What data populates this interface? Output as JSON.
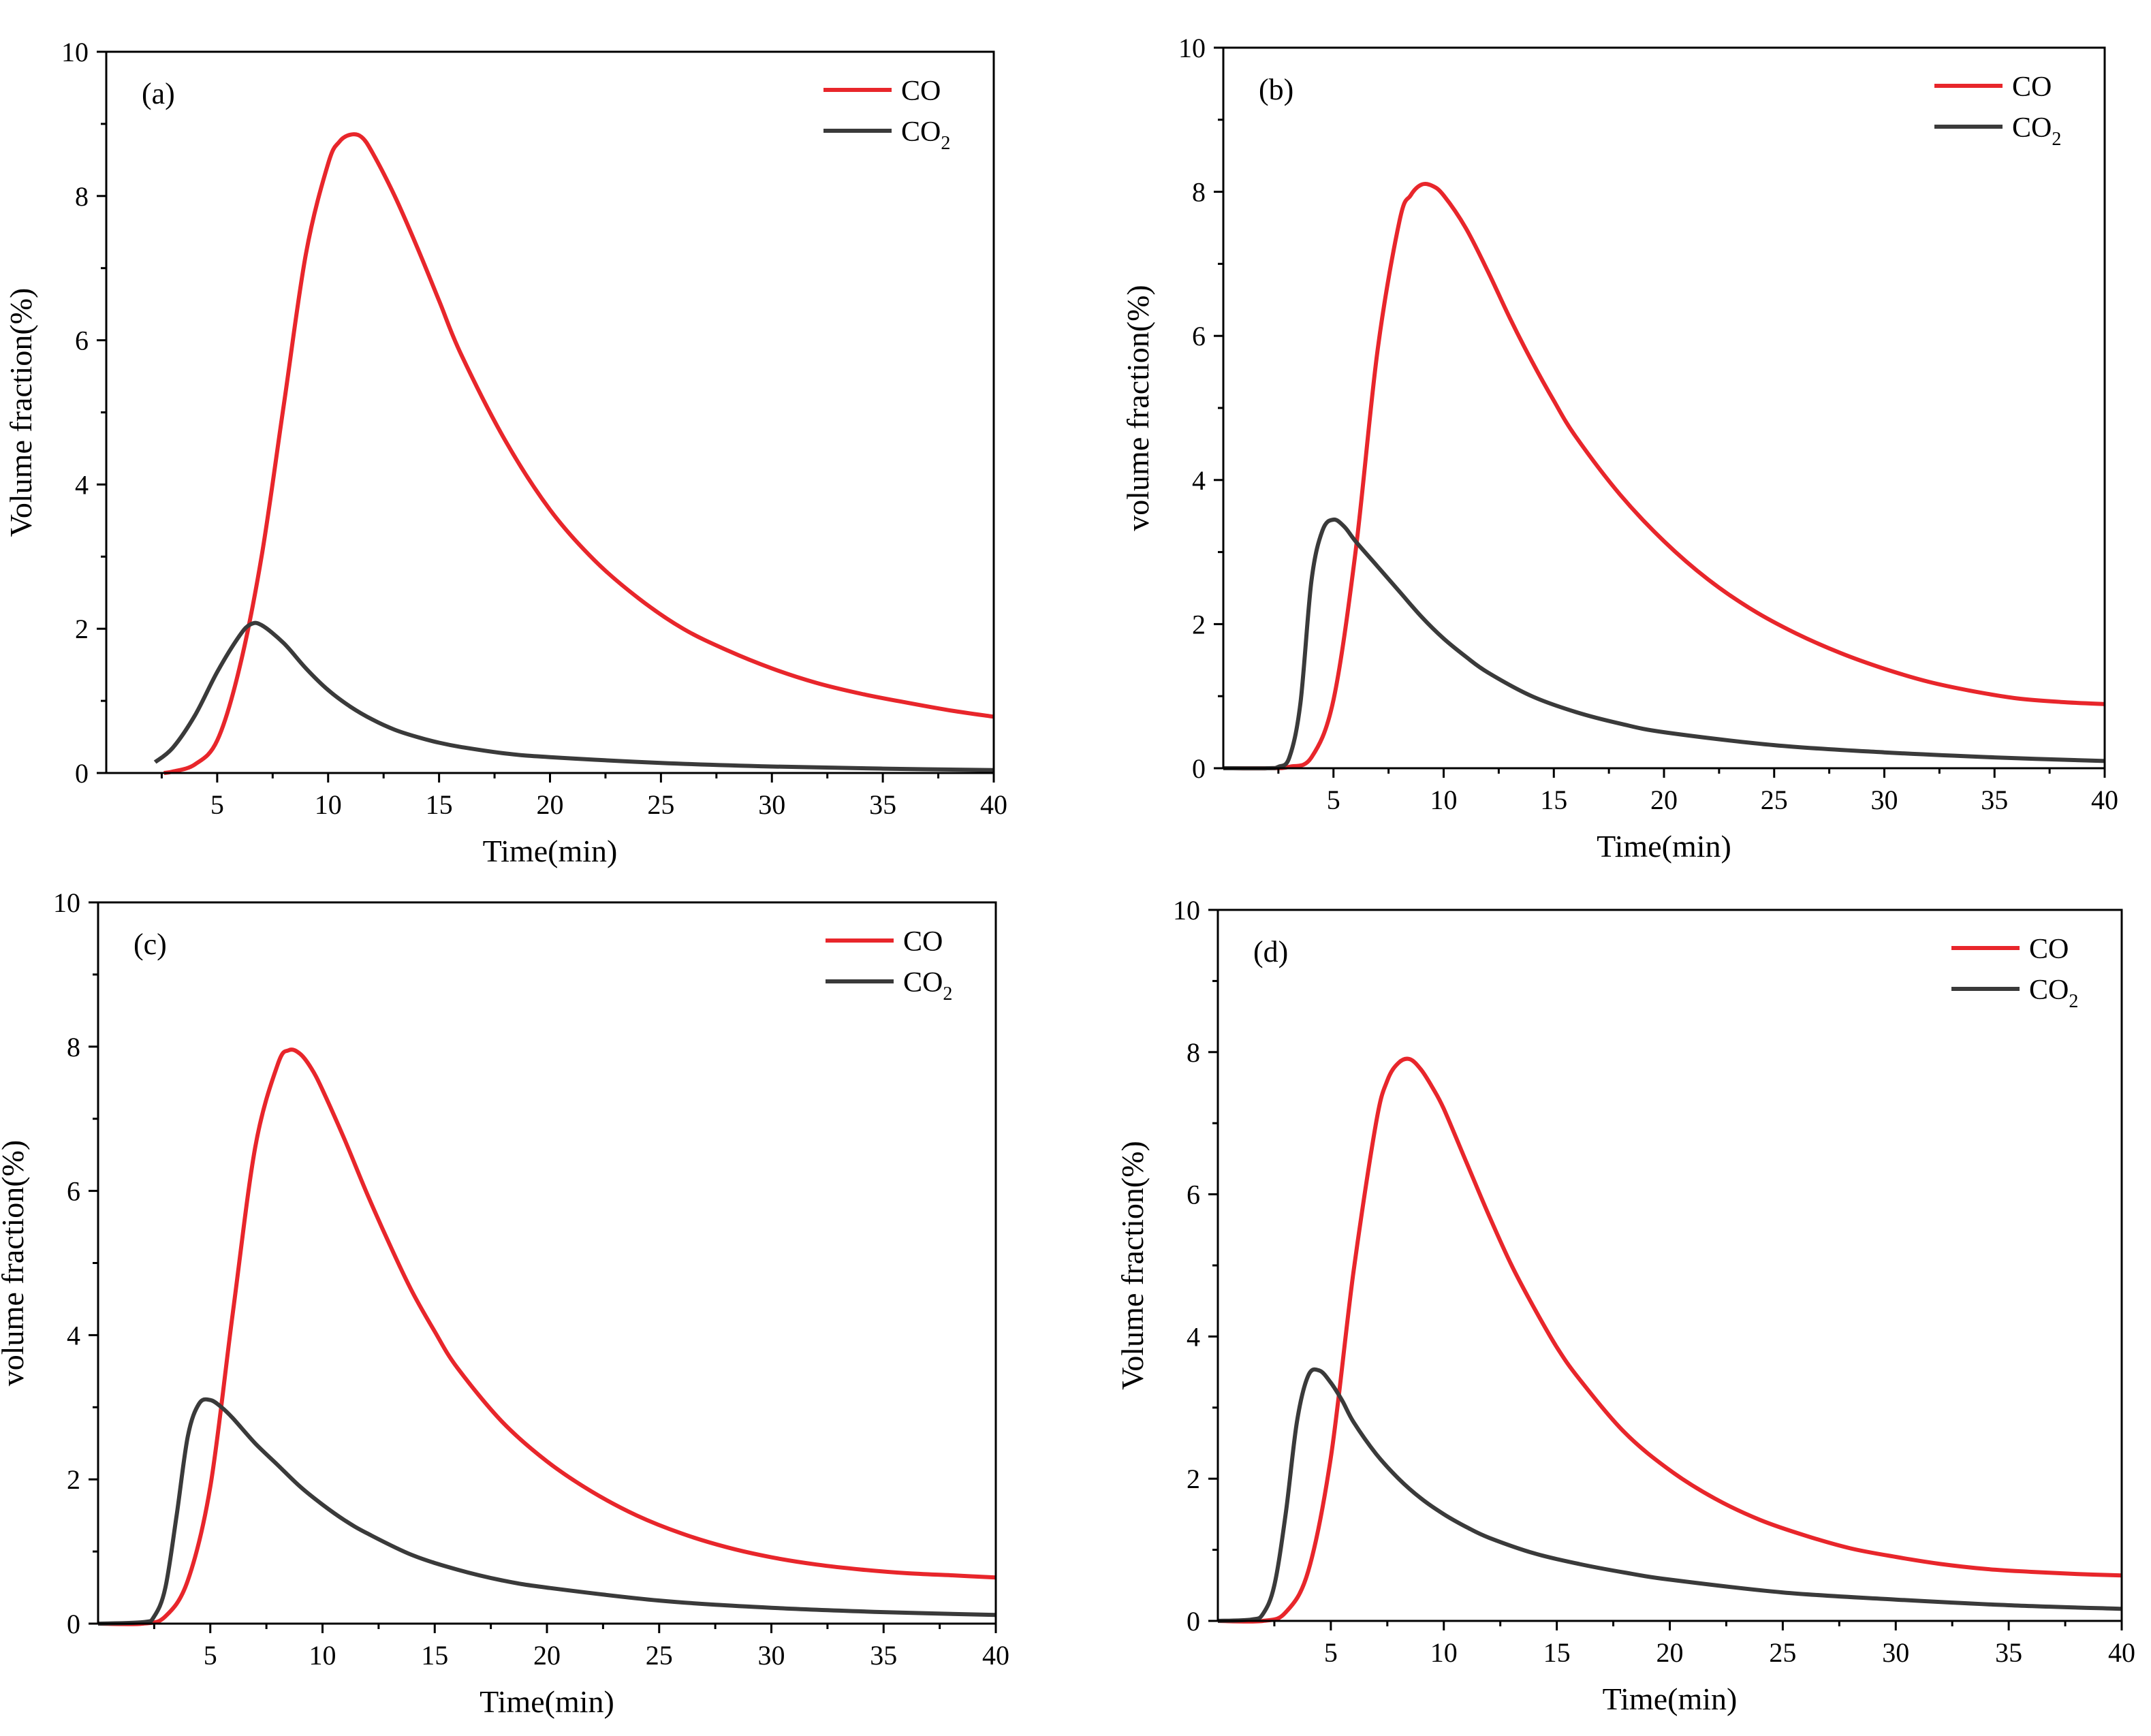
{
  "figure": {
    "colors": {
      "CO": "#e8262b",
      "CO2": "#3a3a3a",
      "axis": "#000000"
    }
  },
  "chart_data": [
    {
      "type": "line",
      "panel_label": "(a)",
      "xlabel": "Time(min)",
      "ylabel": "Volume fraction(%)",
      "xlim": [
        0,
        40
      ],
      "ylim": [
        0,
        10
      ],
      "xticks": [
        5,
        10,
        15,
        20,
        25,
        30,
        35,
        40
      ],
      "yticks": [
        0,
        2,
        4,
        6,
        8,
        10
      ],
      "legend": {
        "position": "top-right",
        "entries": [
          {
            "name": "CO",
            "text": "CO",
            "sub": ""
          },
          {
            "name": "CO2",
            "text": "CO",
            "sub": "2"
          }
        ]
      },
      "series": [
        {
          "name": "CO",
          "x": [
            2.6,
            3.0,
            4.0,
            5.0,
            6.0,
            7.0,
            8.0,
            9.0,
            10.0,
            10.5,
            11.0,
            11.5,
            12.0,
            13.0,
            14.0,
            15.0,
            16.0,
            18.0,
            20.0,
            22.0,
            24.0,
            26.0,
            28.0,
            30.0,
            32.0,
            34.0,
            36.0,
            38.0,
            40.0
          ],
          "y": [
            0.0,
            0.02,
            0.12,
            0.45,
            1.45,
            3.0,
            5.1,
            7.2,
            8.45,
            8.75,
            8.85,
            8.82,
            8.6,
            8.0,
            7.3,
            6.55,
            5.8,
            4.6,
            3.65,
            2.95,
            2.42,
            2.0,
            1.7,
            1.45,
            1.25,
            1.1,
            0.98,
            0.87,
            0.78
          ]
        },
        {
          "name": "CO2",
          "x": [
            2.2,
            3.0,
            4.0,
            5.0,
            6.0,
            6.5,
            7.0,
            8.0,
            9.0,
            10.0,
            11.0,
            12.0,
            13.0,
            14.0,
            15.0,
            16.0,
            18.0,
            20.0,
            25.0,
            30.0,
            35.0,
            40.0
          ],
          "y": [
            0.15,
            0.35,
            0.8,
            1.4,
            1.9,
            2.06,
            2.05,
            1.8,
            1.45,
            1.15,
            0.92,
            0.74,
            0.6,
            0.5,
            0.42,
            0.36,
            0.27,
            0.22,
            0.14,
            0.09,
            0.06,
            0.04
          ]
        }
      ]
    },
    {
      "type": "line",
      "panel_label": "(b)",
      "xlabel": "Time(min)",
      "ylabel": "volume fraction(%)",
      "xlim": [
        0,
        40
      ],
      "ylim": [
        0,
        10
      ],
      "xticks": [
        5,
        10,
        15,
        20,
        25,
        30,
        35,
        40
      ],
      "yticks": [
        0,
        2,
        4,
        6,
        8,
        10
      ],
      "legend": {
        "position": "top-right",
        "entries": [
          {
            "name": "CO",
            "text": "CO",
            "sub": ""
          },
          {
            "name": "CO2",
            "text": "CO",
            "sub": "2"
          }
        ]
      },
      "series": [
        {
          "name": "CO",
          "x": [
            0,
            2.0,
            3.0,
            4.0,
            5.0,
            6.0,
            7.0,
            8.0,
            8.5,
            9.0,
            9.5,
            10.0,
            11.0,
            12.0,
            13.0,
            14.0,
            15.0,
            16.0,
            18.0,
            20.0,
            22.0,
            24.0,
            26.0,
            28.0,
            30.0,
            32.0,
            34.0,
            36.0,
            38.0,
            40.0
          ],
          "y": [
            0,
            0.0,
            0.02,
            0.15,
            0.95,
            3.0,
            5.8,
            7.6,
            7.95,
            8.1,
            8.08,
            7.95,
            7.5,
            6.9,
            6.25,
            5.65,
            5.1,
            4.6,
            3.8,
            3.15,
            2.62,
            2.2,
            1.87,
            1.6,
            1.38,
            1.2,
            1.07,
            0.97,
            0.92,
            0.89
          ]
        },
        {
          "name": "CO2",
          "x": [
            0,
            2.0,
            2.5,
            3.0,
            3.5,
            4.0,
            4.5,
            5.0,
            5.5,
            6.0,
            7.0,
            8.0,
            9.0,
            10.0,
            11.0,
            12.0,
            14.0,
            16.0,
            18.0,
            20.0,
            25.0,
            30.0,
            35.0,
            40.0
          ],
          "y": [
            0,
            0.0,
            0.02,
            0.15,
            0.9,
            2.6,
            3.3,
            3.45,
            3.35,
            3.15,
            2.8,
            2.45,
            2.1,
            1.8,
            1.55,
            1.33,
            1.0,
            0.78,
            0.62,
            0.5,
            0.32,
            0.22,
            0.15,
            0.1
          ]
        }
      ]
    },
    {
      "type": "line",
      "panel_label": "(c)",
      "xlabel": "Time(min)",
      "ylabel": "volume fraction(%)",
      "xlim": [
        0,
        40
      ],
      "ylim": [
        0,
        10
      ],
      "xticks": [
        5,
        10,
        15,
        20,
        25,
        30,
        35,
        40
      ],
      "yticks": [
        0,
        2,
        4,
        6,
        8,
        10
      ],
      "legend": {
        "position": "top-right",
        "entries": [
          {
            "name": "CO",
            "text": "CO",
            "sub": ""
          },
          {
            "name": "CO2",
            "text": "CO",
            "sub": "2"
          }
        ]
      },
      "series": [
        {
          "name": "CO",
          "x": [
            0,
            2.0,
            3.0,
            4.0,
            5.0,
            6.0,
            7.0,
            8.0,
            8.5,
            9.0,
            9.5,
            10.0,
            11.0,
            12.0,
            13.0,
            14.0,
            15.0,
            16.0,
            18.0,
            20.0,
            22.0,
            24.0,
            26.0,
            28.0,
            30.0,
            32.0,
            34.0,
            36.0,
            38.0,
            40.0
          ],
          "y": [
            0,
            0.0,
            0.1,
            0.6,
            1.9,
            4.3,
            6.6,
            7.75,
            7.95,
            7.9,
            7.7,
            7.4,
            6.7,
            5.95,
            5.25,
            4.6,
            4.05,
            3.55,
            2.8,
            2.25,
            1.83,
            1.5,
            1.25,
            1.06,
            0.92,
            0.82,
            0.75,
            0.7,
            0.67,
            0.64
          ]
        },
        {
          "name": "CO2",
          "x": [
            0,
            2.0,
            2.5,
            3.0,
            3.5,
            4.0,
            4.5,
            5.0,
            5.5,
            6.0,
            7.0,
            8.0,
            9.0,
            10.0,
            11.0,
            12.0,
            14.0,
            16.0,
            18.0,
            20.0,
            25.0,
            30.0,
            35.0,
            40.0
          ],
          "y": [
            0,
            0.02,
            0.1,
            0.5,
            1.5,
            2.6,
            3.05,
            3.1,
            3.0,
            2.85,
            2.5,
            2.2,
            1.9,
            1.65,
            1.43,
            1.25,
            0.95,
            0.75,
            0.6,
            0.5,
            0.32,
            0.22,
            0.16,
            0.12
          ]
        }
      ]
    },
    {
      "type": "line",
      "panel_label": "(d)",
      "xlabel": "Time(min)",
      "ylabel": "Volume fraction(%)",
      "xlim": [
        0,
        40
      ],
      "ylim": [
        0,
        10
      ],
      "xticks": [
        5,
        10,
        15,
        20,
        25,
        30,
        35,
        40
      ],
      "yticks": [
        0,
        2,
        4,
        6,
        8,
        10
      ],
      "legend": {
        "position": "top-right",
        "entries": [
          {
            "name": "CO",
            "text": "CO",
            "sub": ""
          },
          {
            "name": "CO2",
            "text": "CO",
            "sub": "2"
          }
        ]
      },
      "series": [
        {
          "name": "CO",
          "x": [
            0,
            2.0,
            3.0,
            4.0,
            5.0,
            6.0,
            7.0,
            7.5,
            8.0,
            8.5,
            9.0,
            9.5,
            10.0,
            11.0,
            12.0,
            13.0,
            14.0,
            15.0,
            16.0,
            18.0,
            20.0,
            22.0,
            24.0,
            26.0,
            28.0,
            30.0,
            32.0,
            34.0,
            36.0,
            38.0,
            40.0
          ],
          "y": [
            0,
            0.0,
            0.12,
            0.7,
            2.3,
            4.9,
            7.0,
            7.6,
            7.85,
            7.9,
            7.75,
            7.5,
            7.2,
            6.45,
            5.7,
            5.0,
            4.4,
            3.85,
            3.4,
            2.65,
            2.12,
            1.72,
            1.42,
            1.2,
            1.02,
            0.9,
            0.8,
            0.73,
            0.69,
            0.66,
            0.64
          ]
        },
        {
          "name": "CO2",
          "x": [
            0,
            1.5,
            2.0,
            2.5,
            3.0,
            3.5,
            4.0,
            4.5,
            5.0,
            5.5,
            6.0,
            7.0,
            8.0,
            9.0,
            10.0,
            11.0,
            12.0,
            14.0,
            16.0,
            18.0,
            20.0,
            25.0,
            30.0,
            35.0,
            40.0
          ],
          "y": [
            0,
            0.02,
            0.1,
            0.5,
            1.5,
            2.8,
            3.45,
            3.52,
            3.35,
            3.1,
            2.8,
            2.35,
            2.0,
            1.72,
            1.5,
            1.32,
            1.17,
            0.95,
            0.8,
            0.68,
            0.58,
            0.4,
            0.3,
            0.22,
            0.17
          ]
        }
      ]
    }
  ]
}
